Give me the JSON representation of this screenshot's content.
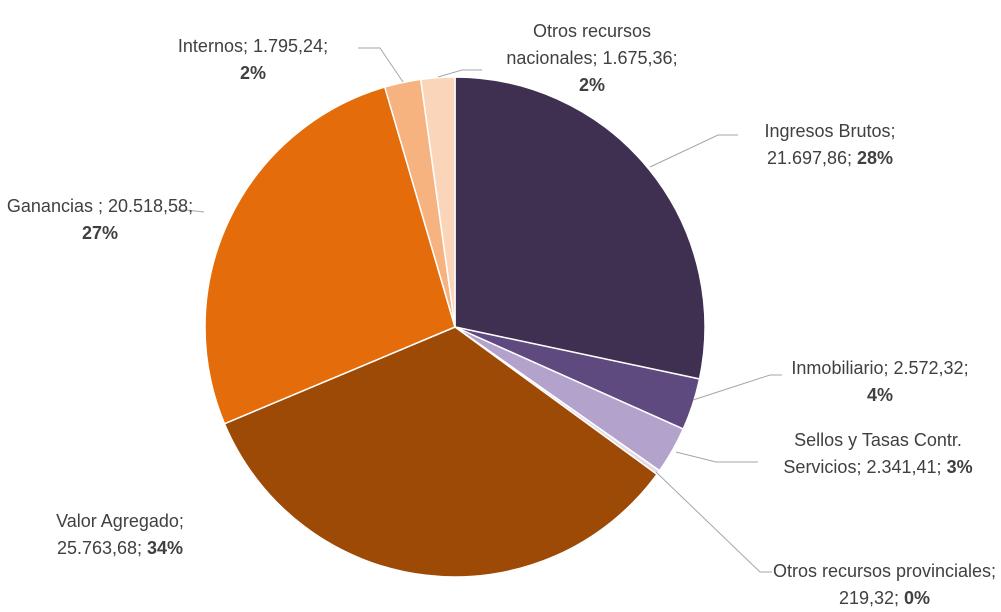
{
  "chart_data": {
    "type": "pie",
    "categories": [
      "Ingresos Brutos",
      "Inmobiliario",
      "Sellos y Tasas Contr. Servicios",
      "Otros recursos provinciales",
      "Valor Agregado",
      "Ganancias ",
      "Internos",
      "Otros recursos nacionales"
    ],
    "values": [
      21697.86,
      2572.32,
      2341.41,
      219.32,
      25763.68,
      20518.58,
      1795.24,
      1675.36
    ],
    "value_labels": [
      "21.697,86",
      "2.572,32",
      "2.341,41",
      "219,32",
      "25.763,68",
      "20.518,58",
      "1.795,24",
      "1.675,36"
    ],
    "percent_labels": [
      "28%",
      "4%",
      "3%",
      "0%",
      "34%",
      "27%",
      "2%",
      "2%"
    ],
    "label_separator": "; ",
    "colors": [
      "#3f3052",
      "#5e4a7e",
      "#b3a3cc",
      "#e2dbec",
      "#9c4a06",
      "#e46c0a",
      "#f6b37f",
      "#fbd5b9"
    ]
  }
}
